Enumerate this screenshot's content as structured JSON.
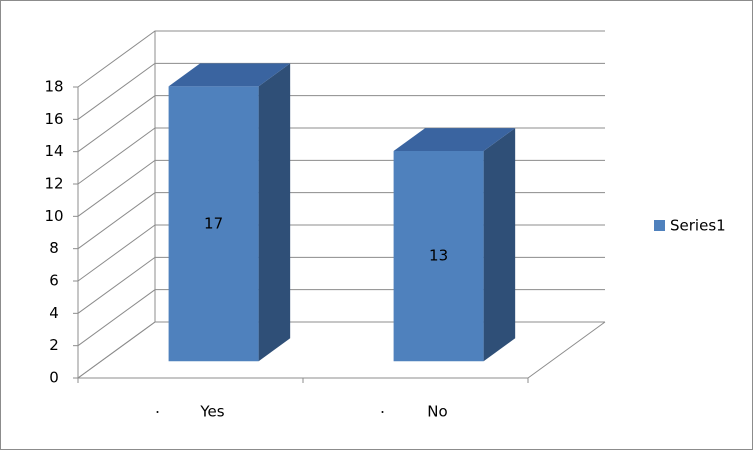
{
  "chart_data": {
    "type": "bar3d",
    "categories": [
      "Yes",
      "No"
    ],
    "series": [
      {
        "name": "Series1",
        "color": "#4f81bd",
        "values": [
          17,
          13
        ]
      }
    ],
    "ylim": [
      0,
      18
    ],
    "yticks": [
      0,
      2,
      4,
      6,
      8,
      10,
      12,
      14,
      16,
      18
    ],
    "grid": true,
    "legend": "right",
    "data_labels": true
  }
}
